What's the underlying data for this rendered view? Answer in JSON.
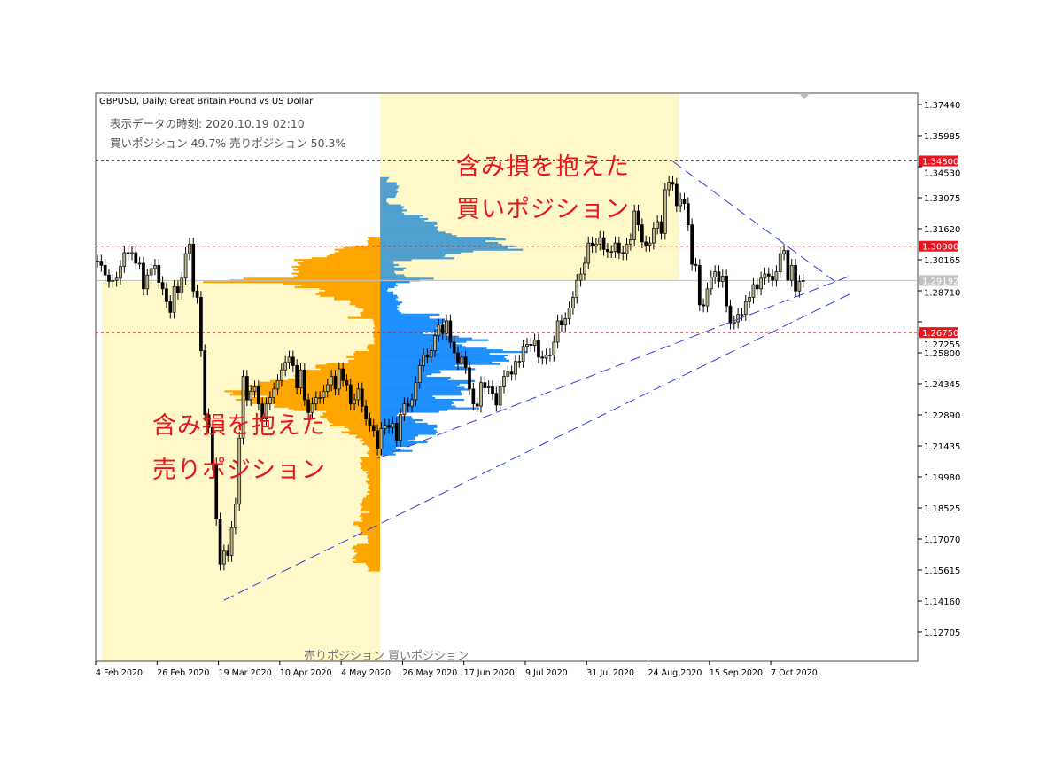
{
  "header": {
    "title": "GBPUSD, Daily:  Great Britain Pound vs US Dollar",
    "time_line": "表示データの時刻: 2020.10.19 02:10",
    "ratio_line": "買いポジション 49.7% 売りポジション 50.3%"
  },
  "annotations": {
    "buy_line1": "含み損を抱えた",
    "buy_line2": "買いポジション",
    "sell_line1": "含み損を抱えた",
    "sell_line2": "売りポジション",
    "bottom_sell": "売りポジション",
    "bottom_buy": "買いポジション"
  },
  "colors": {
    "buy_zone": "#fff8c8",
    "sell_zone": "#fff8c8",
    "sell_profile": "#ffa500",
    "buy_profile_above": "#4f9fcf",
    "buy_profile_below": "#1e8fff",
    "level_line": "#e8141e",
    "trendline": "#3040e0",
    "current_price": "#c0c0c0"
  },
  "chart_data": {
    "type": "candlestick",
    "symbol": "GBPUSD",
    "timeframe": "Daily",
    "start_date": "4 Feb 2020",
    "closes": [
      1.301,
      1.299,
      1.2945,
      1.2915,
      1.292,
      1.293,
      1.2985,
      1.305,
      1.3045,
      1.305,
      1.3,
      1.3,
      1.288,
      1.2945,
      1.2975,
      1.299,
      1.291,
      1.288,
      1.282,
      1.277,
      1.289,
      1.286,
      1.293,
      1.3045,
      1.309,
      1.287,
      1.284,
      1.259,
      1.229,
      1.223,
      1.206,
      1.18,
      1.159,
      1.165,
      1.163,
      1.176,
      1.187,
      1.218,
      1.247,
      1.236,
      1.24,
      1.242,
      1.234,
      1.227,
      1.234,
      1.237,
      1.241,
      1.245,
      1.25,
      1.2535,
      1.256,
      1.252,
      1.2415,
      1.25,
      1.236,
      1.23,
      1.234,
      1.237,
      1.237,
      1.24,
      1.243,
      1.247,
      1.241,
      1.2505,
      1.245,
      1.243,
      1.234,
      1.236,
      1.241,
      1.233,
      1.227,
      1.224,
      1.2215,
      1.213,
      1.2225,
      1.224,
      1.223,
      1.225,
      1.217,
      1.229,
      1.234,
      1.233,
      1.236,
      1.244,
      1.252,
      1.257,
      1.256,
      1.259,
      1.266,
      1.271,
      1.267,
      1.273,
      1.263,
      1.258,
      1.253,
      1.256,
      1.251,
      1.241,
      1.234,
      1.233,
      1.244,
      1.2415,
      1.242,
      1.239,
      1.2335,
      1.242,
      1.247,
      1.249,
      1.248,
      1.254,
      1.254,
      1.261,
      1.262,
      1.2615,
      1.264,
      1.256,
      1.2555,
      1.257,
      1.257,
      1.263,
      1.273,
      1.271,
      1.274,
      1.279,
      1.284,
      1.292,
      1.295,
      1.3,
      1.3095,
      1.308,
      1.309,
      1.312,
      1.3065,
      1.3055,
      1.3055,
      1.3095,
      1.305,
      1.3045,
      1.309,
      1.311,
      1.3245,
      1.318,
      1.31,
      1.3085,
      1.3095,
      1.3165,
      1.3195,
      1.314,
      1.3345,
      1.338,
      1.337,
      1.327,
      1.33,
      1.328,
      1.318,
      1.2995,
      1.299,
      1.2805,
      1.28,
      1.288,
      1.2935,
      1.296,
      1.2915,
      1.294,
      1.28,
      1.272,
      1.2725,
      1.276,
      1.276,
      1.282,
      1.284,
      1.29,
      1.288,
      1.293,
      1.295,
      1.294,
      1.292,
      1.296,
      1.3045,
      1.306,
      1.292,
      1.299,
      1.287,
      1.2915,
      1.2919
    ],
    "ylim": [
      1.1198,
      1.38
    ],
    "y_ticks": [
      "1.37440",
      "1.35985",
      "1.34530",
      "1.33075",
      "1.31620",
      "1.30165",
      "1.28710",
      "1.27255",
      "1.25800",
      "1.24345",
      "1.22890",
      "1.21435",
      "1.19980",
      "1.18525",
      "1.17070",
      "1.15615",
      "1.14160",
      "1.12705"
    ],
    "x_ticks": [
      "4 Feb 2020",
      "26 Feb 2020",
      "19 Mar 2020",
      "10 Apr 2020",
      "4 May 2020",
      "26 May 2020",
      "17 Jun 2020",
      "9 Jul 2020",
      "31 Jul 2020",
      "24 Aug 2020",
      "15 Sep 2020",
      "7 Oct 2020"
    ],
    "current_price": "1.29192",
    "levels": [
      "1.34800",
      "1.30800",
      "1.26750"
    ],
    "trendlines": [
      {
        "from": [
          "20 Mar 2020",
          1.142
        ],
        "to": [
          "5 Nov 2020",
          1.2863
        ]
      },
      {
        "from": [
          "15 May 2020",
          1.2085
        ],
        "to": [
          "5 Nov 2020",
          1.2946
        ]
      },
      {
        "from": [
          "1 Sep 2020",
          1.3478
        ],
        "to": [
          "30 Oct 2020",
          1.2905
        ]
      }
    ],
    "sell_zone": {
      "from": "4 Feb 2020",
      "to": "15 May 2020",
      "price_from": 1.29192,
      "price_to": "bottom"
    },
    "buy_zone": {
      "from": "15 May 2020",
      "to": "1 Sep 2020",
      "price_from": 1.29192,
      "price_to": "top"
    },
    "grid": false
  }
}
